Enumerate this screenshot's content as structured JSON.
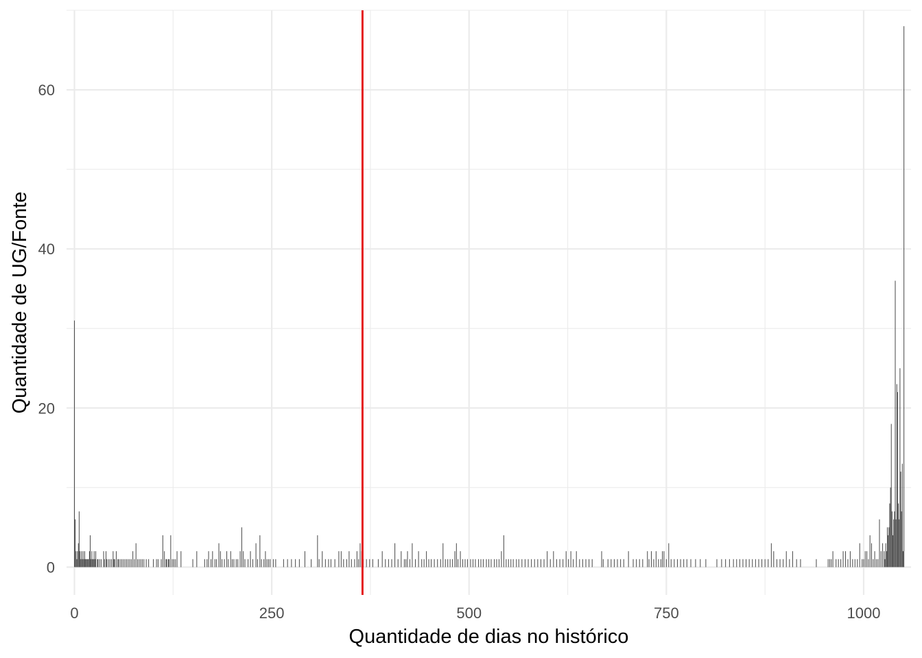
{
  "chart_data": {
    "type": "bar",
    "title": "",
    "xlabel": "Quantidade de dias no histórico",
    "ylabel": "Quantidade de UG/Fonte",
    "xlim": [
      -10,
      1060
    ],
    "ylim": [
      -3.5,
      70
    ],
    "x_ticks": [
      0,
      250,
      500,
      750,
      1000
    ],
    "y_ticks": [
      0,
      20,
      40,
      60
    ],
    "grid": true,
    "legend": "none",
    "bar_color": "#4d4d4d",
    "reference_line": {
      "x": 365,
      "color": "#e41a1c"
    },
    "points": [
      [
        0,
        31
      ],
      [
        1,
        6
      ],
      [
        2,
        2
      ],
      [
        3,
        1
      ],
      [
        4,
        2
      ],
      [
        5,
        3
      ],
      [
        6,
        7
      ],
      [
        7,
        2
      ],
      [
        8,
        1
      ],
      [
        9,
        2
      ],
      [
        10,
        1
      ],
      [
        11,
        2
      ],
      [
        12,
        1
      ],
      [
        13,
        2
      ],
      [
        14,
        1
      ],
      [
        15,
        1
      ],
      [
        16,
        1
      ],
      [
        17,
        1
      ],
      [
        18,
        1
      ],
      [
        19,
        2
      ],
      [
        20,
        4
      ],
      [
        21,
        1
      ],
      [
        22,
        2
      ],
      [
        23,
        1
      ],
      [
        24,
        1
      ],
      [
        25,
        2
      ],
      [
        26,
        1
      ],
      [
        27,
        2
      ],
      [
        29,
        1
      ],
      [
        30,
        1
      ],
      [
        32,
        1
      ],
      [
        34,
        1
      ],
      [
        37,
        2
      ],
      [
        38,
        1
      ],
      [
        40,
        2
      ],
      [
        41,
        1
      ],
      [
        43,
        1
      ],
      [
        45,
        1
      ],
      [
        47,
        1
      ],
      [
        49,
        2
      ],
      [
        50,
        1
      ],
      [
        51,
        1
      ],
      [
        53,
        2
      ],
      [
        55,
        1
      ],
      [
        56,
        1
      ],
      [
        58,
        1
      ],
      [
        60,
        1
      ],
      [
        62,
        1
      ],
      [
        64,
        1
      ],
      [
        66,
        1
      ],
      [
        68,
        1
      ],
      [
        70,
        1
      ],
      [
        72,
        1
      ],
      [
        74,
        2
      ],
      [
        76,
        1
      ],
      [
        78,
        3
      ],
      [
        80,
        1
      ],
      [
        82,
        1
      ],
      [
        84,
        1
      ],
      [
        86,
        1
      ],
      [
        88,
        1
      ],
      [
        91,
        1
      ],
      [
        94,
        1
      ],
      [
        100,
        1
      ],
      [
        104,
        1
      ],
      [
        106,
        1
      ],
      [
        110,
        1
      ],
      [
        112,
        4
      ],
      [
        114,
        2
      ],
      [
        116,
        1
      ],
      [
        117,
        1
      ],
      [
        119,
        1
      ],
      [
        120,
        1
      ],
      [
        122,
        4
      ],
      [
        124,
        1
      ],
      [
        126,
        1
      ],
      [
        128,
        1
      ],
      [
        130,
        2
      ],
      [
        135,
        2
      ],
      [
        150,
        1
      ],
      [
        155,
        2
      ],
      [
        165,
        1
      ],
      [
        168,
        1
      ],
      [
        170,
        2
      ],
      [
        173,
        1
      ],
      [
        175,
        2
      ],
      [
        178,
        1
      ],
      [
        180,
        1
      ],
      [
        183,
        3
      ],
      [
        185,
        2
      ],
      [
        187,
        1
      ],
      [
        190,
        1
      ],
      [
        193,
        2
      ],
      [
        195,
        1
      ],
      [
        198,
        2
      ],
      [
        200,
        1
      ],
      [
        202,
        1
      ],
      [
        205,
        1
      ],
      [
        207,
        1
      ],
      [
        210,
        2
      ],
      [
        212,
        5
      ],
      [
        214,
        2
      ],
      [
        216,
        1
      ],
      [
        220,
        1
      ],
      [
        223,
        2
      ],
      [
        226,
        1
      ],
      [
        230,
        3
      ],
      [
        232,
        1
      ],
      [
        235,
        4
      ],
      [
        237,
        1
      ],
      [
        240,
        1
      ],
      [
        242,
        2
      ],
      [
        244,
        1
      ],
      [
        246,
        1
      ],
      [
        248,
        1
      ],
      [
        252,
        1
      ],
      [
        255,
        1
      ],
      [
        265,
        1
      ],
      [
        270,
        1
      ],
      [
        275,
        1
      ],
      [
        280,
        1
      ],
      [
        285,
        1
      ],
      [
        292,
        2
      ],
      [
        300,
        1
      ],
      [
        308,
        4
      ],
      [
        310,
        1
      ],
      [
        314,
        2
      ],
      [
        318,
        1
      ],
      [
        322,
        1
      ],
      [
        325,
        1
      ],
      [
        330,
        1
      ],
      [
        335,
        2
      ],
      [
        338,
        2
      ],
      [
        341,
        1
      ],
      [
        345,
        1
      ],
      [
        348,
        2
      ],
      [
        351,
        1
      ],
      [
        355,
        1
      ],
      [
        358,
        2
      ],
      [
        360,
        1
      ],
      [
        362,
        3
      ],
      [
        364,
        2
      ],
      [
        366,
        1
      ],
      [
        370,
        1
      ],
      [
        374,
        1
      ],
      [
        378,
        1
      ],
      [
        385,
        1
      ],
      [
        390,
        2
      ],
      [
        394,
        1
      ],
      [
        398,
        1
      ],
      [
        402,
        1
      ],
      [
        406,
        3
      ],
      [
        410,
        1
      ],
      [
        414,
        2
      ],
      [
        418,
        1
      ],
      [
        420,
        1
      ],
      [
        422,
        2
      ],
      [
        425,
        1
      ],
      [
        428,
        3
      ],
      [
        432,
        1
      ],
      [
        436,
        2
      ],
      [
        440,
        1
      ],
      [
        443,
        1
      ],
      [
        446,
        2
      ],
      [
        449,
        1
      ],
      [
        452,
        1
      ],
      [
        456,
        1
      ],
      [
        460,
        1
      ],
      [
        464,
        1
      ],
      [
        467,
        3
      ],
      [
        470,
        1
      ],
      [
        473,
        1
      ],
      [
        476,
        1
      ],
      [
        479,
        1
      ],
      [
        482,
        2
      ],
      [
        484,
        3
      ],
      [
        486,
        1
      ],
      [
        489,
        2
      ],
      [
        492,
        1
      ],
      [
        495,
        1
      ],
      [
        498,
        1
      ],
      [
        502,
        1
      ],
      [
        505,
        1
      ],
      [
        508,
        1
      ],
      [
        512,
        1
      ],
      [
        515,
        1
      ],
      [
        518,
        1
      ],
      [
        522,
        1
      ],
      [
        525,
        1
      ],
      [
        528,
        1
      ],
      [
        532,
        1
      ],
      [
        535,
        1
      ],
      [
        538,
        1
      ],
      [
        541,
        2
      ],
      [
        544,
        4
      ],
      [
        547,
        1
      ],
      [
        550,
        1
      ],
      [
        553,
        1
      ],
      [
        556,
        1
      ],
      [
        560,
        1
      ],
      [
        563,
        1
      ],
      [
        567,
        1
      ],
      [
        571,
        1
      ],
      [
        575,
        1
      ],
      [
        579,
        1
      ],
      [
        583,
        1
      ],
      [
        587,
        1
      ],
      [
        591,
        1
      ],
      [
        595,
        1
      ],
      [
        599,
        2
      ],
      [
        603,
        1
      ],
      [
        607,
        2
      ],
      [
        611,
        1
      ],
      [
        615,
        1
      ],
      [
        619,
        1
      ],
      [
        623,
        2
      ],
      [
        626,
        1
      ],
      [
        629,
        2
      ],
      [
        632,
        1
      ],
      [
        636,
        2
      ],
      [
        640,
        1
      ],
      [
        644,
        1
      ],
      [
        648,
        1
      ],
      [
        652,
        1
      ],
      [
        656,
        1
      ],
      [
        668,
        2
      ],
      [
        670,
        1
      ],
      [
        676,
        1
      ],
      [
        680,
        1
      ],
      [
        684,
        1
      ],
      [
        688,
        1
      ],
      [
        692,
        1
      ],
      [
        696,
        1
      ],
      [
        702,
        2
      ],
      [
        708,
        1
      ],
      [
        712,
        1
      ],
      [
        716,
        1
      ],
      [
        720,
        1
      ],
      [
        726,
        2
      ],
      [
        728,
        1
      ],
      [
        731,
        2
      ],
      [
        734,
        1
      ],
      [
        737,
        2
      ],
      [
        740,
        1
      ],
      [
        743,
        1
      ],
      [
        745,
        2
      ],
      [
        747,
        2
      ],
      [
        750,
        1
      ],
      [
        753,
        3
      ],
      [
        756,
        1
      ],
      [
        760,
        1
      ],
      [
        764,
        1
      ],
      [
        768,
        1
      ],
      [
        772,
        1
      ],
      [
        776,
        1
      ],
      [
        781,
        1
      ],
      [
        787,
        1
      ],
      [
        793,
        1
      ],
      [
        800,
        1
      ],
      [
        814,
        1
      ],
      [
        820,
        1
      ],
      [
        825,
        1
      ],
      [
        830,
        1
      ],
      [
        835,
        1
      ],
      [
        839,
        1
      ],
      [
        843,
        1
      ],
      [
        847,
        1
      ],
      [
        851,
        1
      ],
      [
        855,
        1
      ],
      [
        859,
        1
      ],
      [
        863,
        1
      ],
      [
        867,
        1
      ],
      [
        871,
        1
      ],
      [
        875,
        1
      ],
      [
        879,
        1
      ],
      [
        883,
        3
      ],
      [
        886,
        2
      ],
      [
        890,
        1
      ],
      [
        894,
        1
      ],
      [
        898,
        1
      ],
      [
        902,
        2
      ],
      [
        906,
        1
      ],
      [
        910,
        2
      ],
      [
        915,
        1
      ],
      [
        920,
        1
      ],
      [
        940,
        1
      ],
      [
        955,
        1
      ],
      [
        957,
        1
      ],
      [
        959,
        1
      ],
      [
        961,
        2
      ],
      [
        965,
        1
      ],
      [
        968,
        1
      ],
      [
        971,
        1
      ],
      [
        974,
        2
      ],
      [
        977,
        2
      ],
      [
        980,
        1
      ],
      [
        983,
        2
      ],
      [
        986,
        1
      ],
      [
        989,
        1
      ],
      [
        992,
        1
      ],
      [
        995,
        3
      ],
      [
        998,
        1
      ],
      [
        1000,
        1
      ],
      [
        1002,
        2
      ],
      [
        1004,
        2
      ],
      [
        1006,
        1
      ],
      [
        1008,
        4
      ],
      [
        1010,
        3
      ],
      [
        1012,
        1
      ],
      [
        1014,
        2
      ],
      [
        1016,
        1
      ],
      [
        1018,
        1
      ],
      [
        1020,
        6
      ],
      [
        1022,
        2
      ],
      [
        1024,
        3
      ],
      [
        1026,
        2
      ],
      [
        1027,
        1
      ],
      [
        1028,
        3
      ],
      [
        1029,
        2
      ],
      [
        1030,
        5
      ],
      [
        1031,
        4
      ],
      [
        1032,
        5
      ],
      [
        1033,
        8
      ],
      [
        1034,
        10
      ],
      [
        1035,
        18
      ],
      [
        1036,
        7
      ],
      [
        1037,
        4
      ],
      [
        1038,
        6
      ],
      [
        1039,
        7
      ],
      [
        1040,
        36
      ],
      [
        1041,
        6
      ],
      [
        1042,
        23
      ],
      [
        1043,
        22
      ],
      [
        1044,
        8
      ],
      [
        1045,
        6
      ],
      [
        1046,
        25
      ],
      [
        1047,
        12
      ],
      [
        1048,
        7
      ],
      [
        1049,
        13
      ],
      [
        1050,
        2
      ],
      [
        1051,
        68
      ]
    ]
  }
}
